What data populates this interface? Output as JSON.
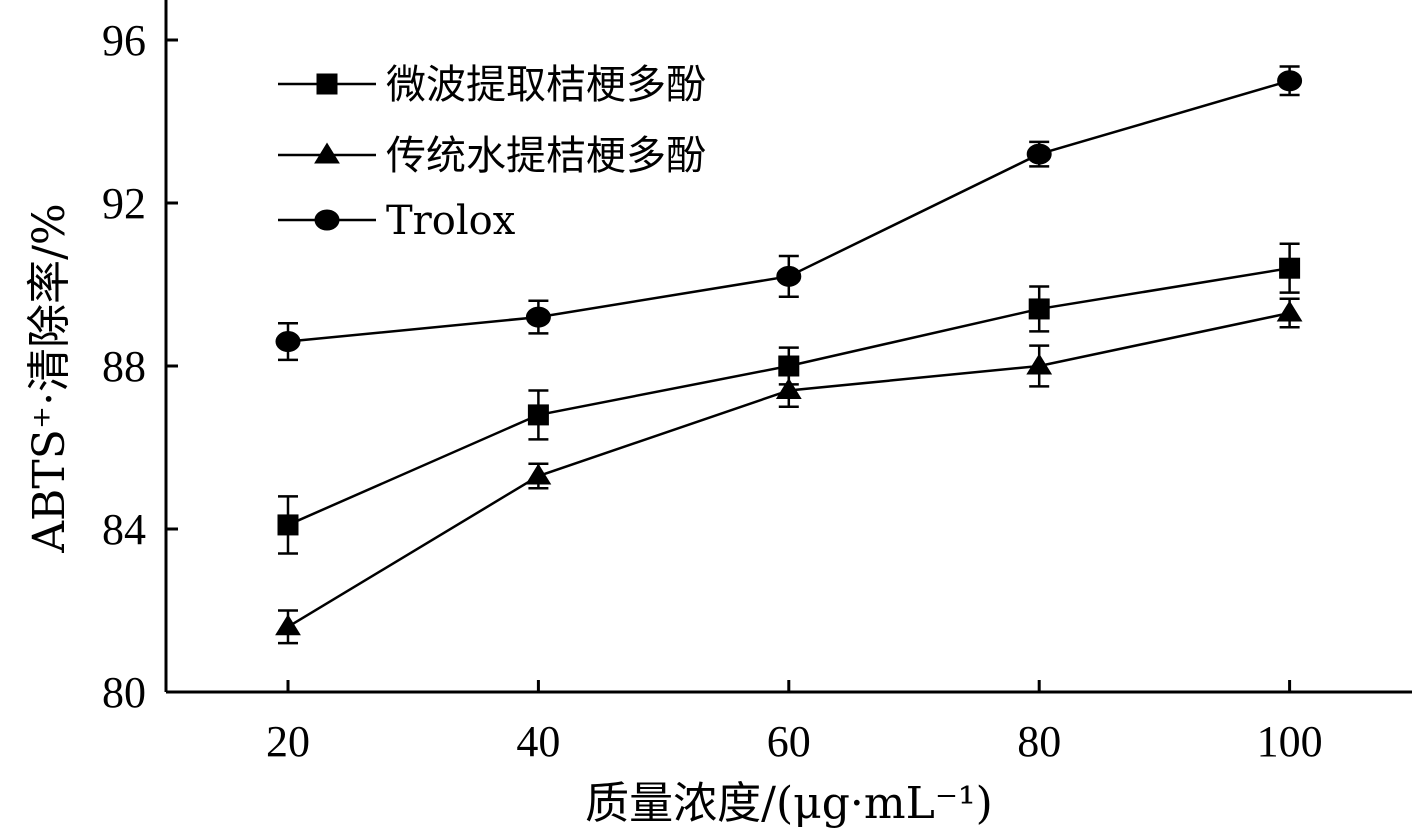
{
  "chart_data": {
    "type": "line",
    "title": "",
    "xlabel": "质量浓度/(μg·mL⁻¹)",
    "ylabel": "ABTS⁺·清除率/%",
    "x": [
      20,
      40,
      60,
      80,
      100
    ],
    "xticks": [
      "20",
      "40",
      "60",
      "80",
      "100"
    ],
    "xlim": [
      10,
      110
    ],
    "ylim": [
      80,
      97
    ],
    "yticks": [
      "80",
      "84",
      "88",
      "92",
      "96"
    ],
    "ytick_values": [
      80,
      84,
      88,
      92,
      96
    ],
    "grid": false,
    "legend_position": "top-left",
    "series": [
      {
        "name": "微波提取桔梗多酚",
        "marker": "square",
        "values": [
          84.1,
          86.8,
          88.0,
          89.4,
          90.4
        ],
        "errors": [
          0.7,
          0.6,
          0.45,
          0.55,
          0.6
        ]
      },
      {
        "name": "传统水提桔梗多酚",
        "marker": "triangle",
        "values": [
          81.6,
          85.3,
          87.4,
          88.0,
          89.3
        ],
        "errors": [
          0.4,
          0.3,
          0.4,
          0.5,
          0.35
        ]
      },
      {
        "name": "Trolox",
        "marker": "circle",
        "values": [
          88.6,
          89.2,
          90.2,
          93.2,
          95.0
        ],
        "errors": [
          0.45,
          0.4,
          0.5,
          0.3,
          0.35
        ]
      }
    ]
  }
}
